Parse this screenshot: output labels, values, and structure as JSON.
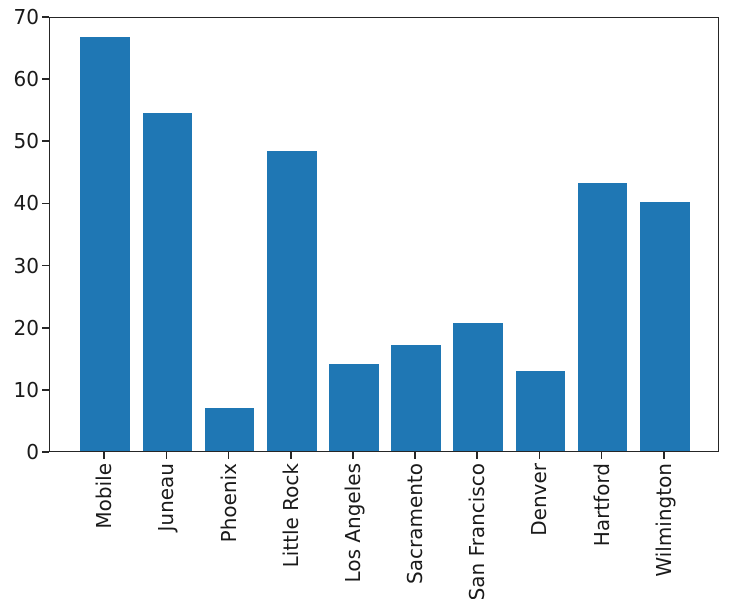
{
  "chart_data": {
    "type": "bar",
    "title": "",
    "xlabel": "",
    "ylabel": "",
    "categories": [
      "Mobile",
      "Juneau",
      "Phoenix",
      "Little Rock",
      "Los Angeles",
      "Sacramento",
      "San Francisco",
      "Denver",
      "Hartford",
      "Wilmington"
    ],
    "values": [
      67.0,
      54.7,
      7.0,
      48.5,
      14.0,
      17.2,
      20.7,
      13.0,
      43.4,
      40.2
    ],
    "ylim": [
      0,
      70
    ],
    "yticks": [
      0,
      10,
      20,
      30,
      40,
      50,
      60,
      70
    ],
    "xlim": [
      -0.89,
      9.89
    ],
    "bar_width_units": 0.8,
    "x_label_rotation_deg": 90,
    "grid": false,
    "legend_position": "none",
    "colors": {
      "bar": "#1f77b4",
      "axis": "#262626",
      "tick_text": "#1a1a1a",
      "background": "#ffffff"
    }
  }
}
